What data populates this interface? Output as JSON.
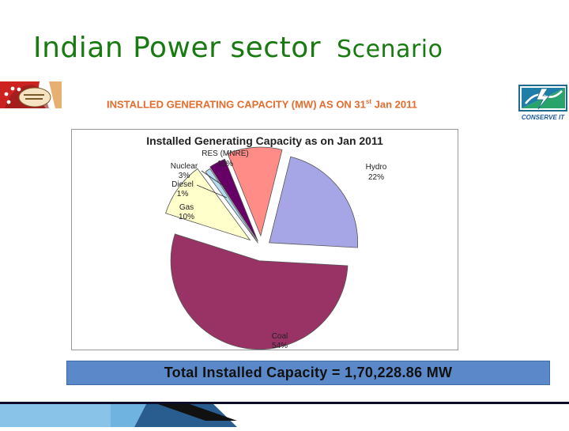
{
  "slide": {
    "title_part1": "Indian Power sector",
    "title_part2": "Scenario",
    "header": "INSTALLED GENERATING CAPACITY (MW) AS ON 31",
    "header_sup": "st",
    "header_tail": " Jan 2011",
    "right_logo_text": "CONSERVE IT"
  },
  "chart_data": {
    "type": "pie",
    "title": "Installed Generating Capacity as on Jan 2011",
    "series": [
      {
        "name": "Hydro",
        "label": "Hydro",
        "value_label": "22%",
        "value": 22,
        "color": "#a6a6e6"
      },
      {
        "name": "Coal",
        "label": "Coal",
        "value_label": "54%",
        "value": 54,
        "color": "#993366"
      },
      {
        "name": "Gas",
        "label": "Gas",
        "value_label": "10%",
        "value": 10,
        "color": "#ffffcc"
      },
      {
        "name": "Diesel",
        "label": "Diesel",
        "value_label": "1%",
        "value": 1,
        "color": "#b3dcf0"
      },
      {
        "name": "Nuclear",
        "label": "Nuclear",
        "value_label": "3%",
        "value": 3,
        "color": "#660066"
      },
      {
        "name": "RES (MNRE)",
        "label": "RES (MNRE)",
        "value_label": "10%",
        "value": 10,
        "color": "#ff8c86"
      }
    ]
  },
  "total": {
    "text": "Total Installed Capacity = 1,70,228.86 MW"
  }
}
